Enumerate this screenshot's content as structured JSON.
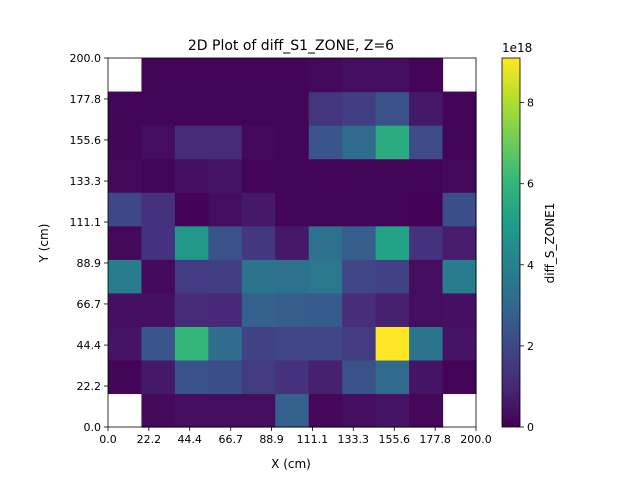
{
  "chart_data": {
    "type": "heatmap",
    "title": "2D Plot of diff_S1_ZONE, Z=6",
    "xlabel": "X (cm)",
    "ylabel": "Y (cm)",
    "xlim": [
      0,
      200
    ],
    "ylim": [
      0,
      200
    ],
    "x_ticks": [
      "0.0",
      "22.2",
      "44.4",
      "66.7",
      "88.9",
      "111.1",
      "133.3",
      "155.6",
      "177.8",
      "200.0"
    ],
    "y_ticks": [
      "0.0",
      "22.2",
      "44.4",
      "66.7",
      "88.9",
      "111.1",
      "133.3",
      "155.6",
      "177.8",
      "200.0"
    ],
    "grid": false,
    "colormap": "viridis",
    "colorbar": {
      "label": "diff_S_ZONE1",
      "exponent_label": "1e18",
      "range": [
        0,
        9.1
      ],
      "ticks": [
        0,
        2,
        4,
        6,
        8
      ],
      "tick_labels": [
        "0",
        "2",
        "4",
        "6",
        "8"
      ]
    },
    "grid_size": [
      11,
      11
    ],
    "rows_bottom_to_top": [
      [
        null,
        0.2,
        0.3,
        0.3,
        0.3,
        2.8,
        0.15,
        0.3,
        0.5,
        0.15,
        null
      ],
      [
        0.1,
        0.6,
        2.3,
        2.2,
        1.6,
        1.3,
        0.8,
        2.3,
        3.1,
        0.5,
        0.1
      ],
      [
        0.5,
        2.4,
        6.0,
        3.2,
        1.8,
        1.9,
        1.9,
        1.6,
        9.1,
        3.5,
        0.5
      ],
      [
        0.4,
        0.4,
        1.1,
        1.0,
        2.8,
        2.7,
        2.6,
        1.2,
        0.8,
        0.3,
        0.4
      ],
      [
        3.8,
        0.2,
        1.6,
        1.7,
        3.5,
        3.4,
        3.6,
        1.9,
        1.8,
        0.3,
        3.8
      ],
      [
        0.2,
        1.3,
        4.8,
        2.3,
        1.5,
        0.6,
        3.4,
        2.7,
        5.2,
        1.3,
        0.7
      ],
      [
        2.0,
        1.3,
        0.05,
        0.3,
        0.6,
        0.1,
        0.1,
        0.1,
        0.1,
        0.05,
        2.2
      ],
      [
        0.2,
        0.1,
        0.4,
        0.5,
        0.1,
        0.1,
        0.1,
        0.1,
        0.1,
        0.1,
        0.2
      ],
      [
        0.1,
        0.3,
        1.1,
        1.1,
        0.2,
        0.1,
        2.4,
        3.2,
        5.6,
        2.1,
        0.1
      ],
      [
        0.1,
        0.1,
        0.1,
        0.1,
        0.1,
        0.1,
        1.4,
        1.7,
        2.3,
        0.6,
        0.1
      ],
      [
        null,
        0.1,
        0.1,
        0.1,
        0.1,
        0.1,
        0.2,
        0.3,
        0.3,
        0.1,
        null
      ]
    ]
  }
}
